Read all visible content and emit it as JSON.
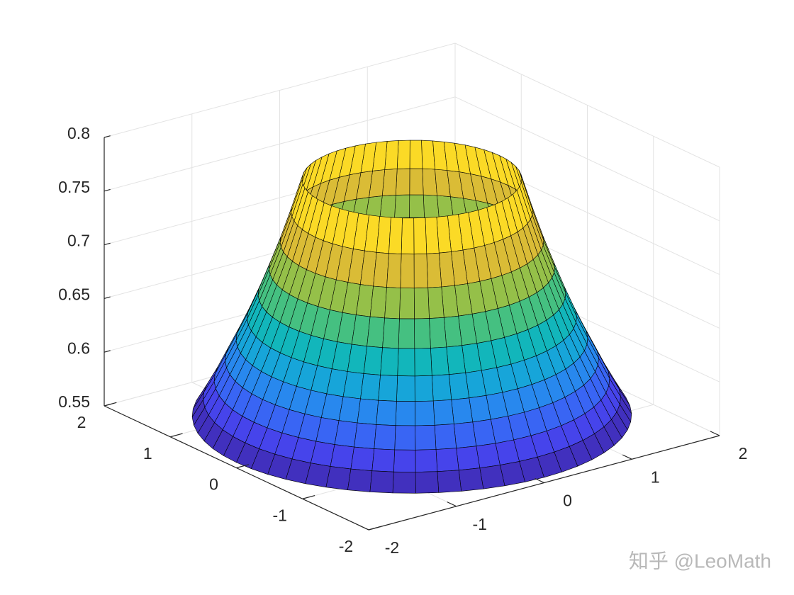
{
  "chart_data": {
    "type": "surface3d",
    "surface": {
      "r": [
        1,
        1.1,
        1.2,
        1.3,
        1.4,
        1.5,
        1.6,
        1.7,
        1.8,
        1.9,
        2
      ],
      "z": [
        0.775,
        0.745,
        0.717,
        0.692,
        0.668,
        0.646,
        0.626,
        0.607,
        0.588,
        0.571,
        0.555
      ]
    },
    "colormap": [
      "#3e26a8",
      "#4748f3",
      "#2d7ef5",
      "#16a7d7",
      "#10bcb0",
      "#71c45a",
      "#c3bb34",
      "#fcbe3a",
      "#f9fb0e"
    ],
    "xlim": [
      -2,
      2
    ],
    "xticks": [
      -2,
      -1,
      0,
      1,
      2
    ],
    "ylim": [
      -2,
      2
    ],
    "yticks": [
      -2,
      -1,
      0,
      1,
      2
    ],
    "zlim": [
      0.55,
      0.8
    ],
    "zticks": [
      0.55,
      0.6,
      0.65,
      0.7,
      0.75,
      0.8
    ],
    "grid": true,
    "watermark": "知乎 @LeoMath"
  }
}
